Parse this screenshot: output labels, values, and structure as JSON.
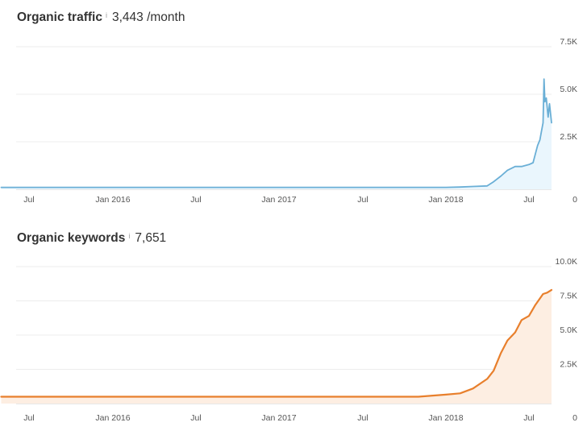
{
  "charts": [
    {
      "title": "Organic traffic",
      "info_icon": "info-icon",
      "metric_value": "3,443",
      "metric_unit": "/month",
      "chart_data": {
        "type": "area",
        "title": "Organic traffic",
        "color": "#6aafd6",
        "fill": "#eaf6fd",
        "ylim": [
          0,
          7500
        ],
        "yticks": [
          0,
          2500,
          5000,
          7500
        ],
        "ytick_labels": [
          "0",
          "2.5K",
          "5.0K",
          "7.5K"
        ],
        "xticks": [
          "Jul",
          "Jan 2016",
          "Jul",
          "Jan 2017",
          "Jul",
          "Jan 2018",
          "Jul"
        ],
        "xlim": [
          "2015-05",
          "2018-09"
        ],
        "grid": true,
        "x": [
          "2015-05",
          "2016-01",
          "2016-07",
          "2017-01",
          "2017-07",
          "2017-12",
          "2018-01",
          "2018-02",
          "2018-03",
          "2018-04",
          "2018-04-15",
          "2018-05",
          "2018-05-15",
          "2018-06",
          "2018-06-15",
          "2018-07",
          "2018-07-10",
          "2018-07-20",
          "2018-07-25",
          "2018-07-28",
          "2018-08-01",
          "2018-08-03",
          "2018-08-05",
          "2018-08-08",
          "2018-08-12",
          "2018-08-15",
          "2018-08-20"
        ],
        "values": [
          100,
          100,
          100,
          100,
          100,
          100,
          100,
          120,
          150,
          180,
          400,
          700,
          1000,
          1200,
          1200,
          1300,
          1400,
          2300,
          2600,
          3000,
          3500,
          5800,
          4600,
          4800,
          3800,
          4500,
          3500
        ]
      }
    },
    {
      "title": "Organic keywords",
      "info_icon": "info-icon",
      "metric_value": "7,651",
      "metric_unit": "",
      "chart_data": {
        "type": "area",
        "title": "Organic keywords",
        "color": "#e87f2c",
        "fill": "#fdeee2",
        "ylim": [
          0,
          10000
        ],
        "yticks": [
          0,
          2500,
          5000,
          7500,
          10000
        ],
        "ytick_labels": [
          "0",
          "2.5K",
          "5.0K",
          "7.5K",
          "10.0K"
        ],
        "xticks": [
          "Jul",
          "Jan 2016",
          "Jul",
          "Jan 2017",
          "Jul",
          "Jan 2018",
          "Jul"
        ],
        "xlim": [
          "2015-05",
          "2018-09"
        ],
        "grid": true,
        "x": [
          "2015-05",
          "2016-01",
          "2016-07",
          "2017-01",
          "2017-07",
          "2017-11",
          "2018-01",
          "2018-02",
          "2018-03",
          "2018-04",
          "2018-04-15",
          "2018-05",
          "2018-05-15",
          "2018-06",
          "2018-06-15",
          "2018-07",
          "2018-07-15",
          "2018-08-01",
          "2018-08-10",
          "2018-08-20"
        ],
        "values": [
          500,
          500,
          500,
          500,
          500,
          500,
          650,
          750,
          1100,
          1800,
          2400,
          3700,
          4600,
          5200,
          6100,
          6400,
          7200,
          8000,
          8100,
          8300
        ]
      }
    }
  ]
}
